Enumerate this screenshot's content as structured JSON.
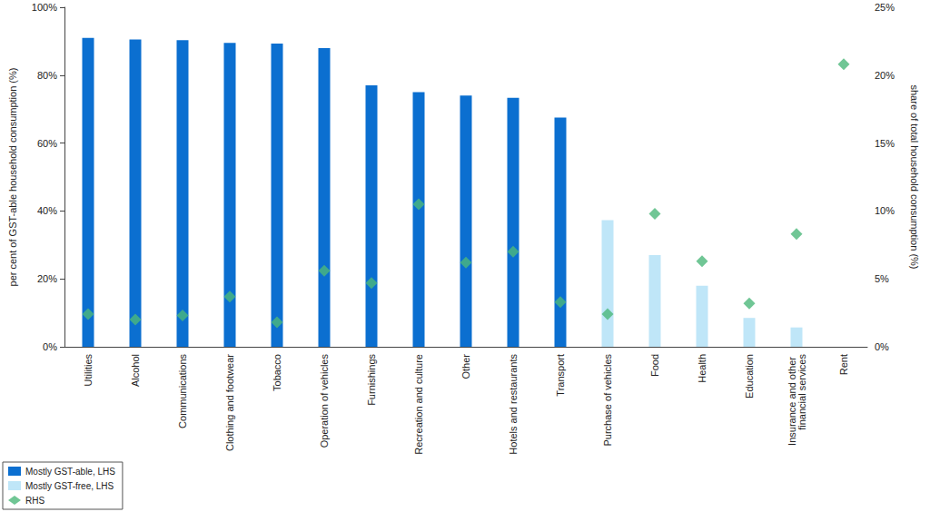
{
  "chart_data": {
    "type": "bar",
    "categories": [
      "Utilities",
      "Alcohol",
      "Communications",
      "Clothing and footwear",
      "Tobacco",
      "Operation of vehicles",
      "Furnishings",
      "Recreation and culture",
      "Other",
      "Hotels and restaurants",
      "Transport",
      "Purchase of vehicles",
      "Food",
      "Health",
      "Education",
      "Insurance and other financial services",
      "Rent"
    ],
    "series": [
      {
        "name": "Mostly GST-able, LHS",
        "type": "bar",
        "color": "#0b6fd0",
        "values": [
          91,
          90.5,
          90.3,
          89.5,
          89.3,
          88,
          77,
          75,
          74,
          73.3,
          67.5,
          null,
          null,
          null,
          null,
          null,
          null
        ]
      },
      {
        "name": "Mostly GST-free, LHS",
        "type": "bar",
        "color": "#bfe6f8",
        "values": [
          null,
          null,
          null,
          null,
          null,
          null,
          null,
          null,
          null,
          null,
          null,
          37.3,
          27,
          18,
          8.5,
          5.7,
          0
        ]
      },
      {
        "name": "RHS",
        "type": "scatter",
        "marker": "diamond",
        "color": "#4cb87a",
        "axis": "y2",
        "values": [
          2.4,
          2.0,
          2.3,
          3.7,
          1.8,
          5.6,
          4.7,
          10.5,
          6.2,
          7.0,
          3.3,
          2.4,
          9.8,
          6.3,
          3.2,
          8.3,
          20.8
        ]
      }
    ],
    "ylabel": "per cent of GST-able household consumption (%)",
    "y2label": "share of total household consumption (%)",
    "ylim": [
      0,
      100
    ],
    "yticks": [
      {
        "value": 0,
        "label": "0%"
      },
      {
        "value": 20,
        "label": "20%"
      },
      {
        "value": 40,
        "label": "40%"
      },
      {
        "value": 60,
        "label": "60%"
      },
      {
        "value": 80,
        "label": "80%"
      },
      {
        "value": 100,
        "label": "100%"
      }
    ],
    "y2lim": [
      0,
      25
    ],
    "y2ticks": [
      {
        "value": 0,
        "label": "0%"
      },
      {
        "value": 5,
        "label": "5%"
      },
      {
        "value": 10,
        "label": "10%"
      },
      {
        "value": 15,
        "label": "15%"
      },
      {
        "value": 20,
        "label": "20%"
      },
      {
        "value": 25,
        "label": "25%"
      }
    ],
    "grid": false,
    "legend": "bottom-left"
  }
}
